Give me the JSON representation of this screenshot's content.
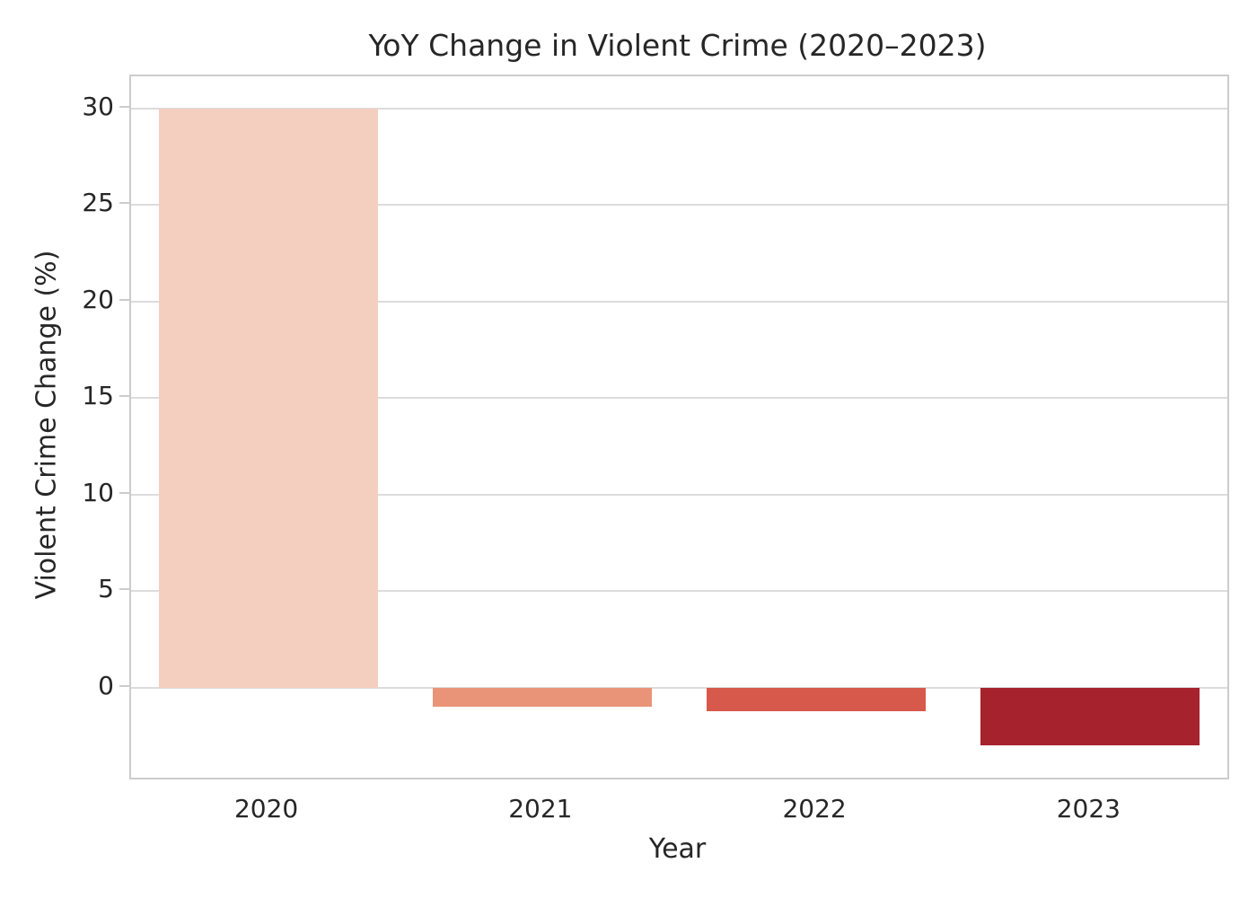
{
  "chart_data": {
    "type": "bar",
    "title": "YoY Change in Violent Crime (2020–2023)",
    "xlabel": "Year",
    "ylabel": "Violent Crime Change (%)",
    "categories": [
      "2020",
      "2021",
      "2022",
      "2023"
    ],
    "values": [
      30.0,
      -1.0,
      -1.2,
      -3.0
    ],
    "unit": "%",
    "yticks": [
      0,
      5,
      10,
      15,
      20,
      25,
      30
    ],
    "ylim": [
      -4.65,
      31.65
    ],
    "bar_colors": [
      "#f4cfc0",
      "#e99478",
      "#d7594b",
      "#a6232e"
    ],
    "grid": "horizontal",
    "legend_position": "none",
    "colors": {
      "background": "#ffffff",
      "text": "#262626",
      "spine": "#cccccc",
      "gridline": "#dcdcdc"
    }
  }
}
